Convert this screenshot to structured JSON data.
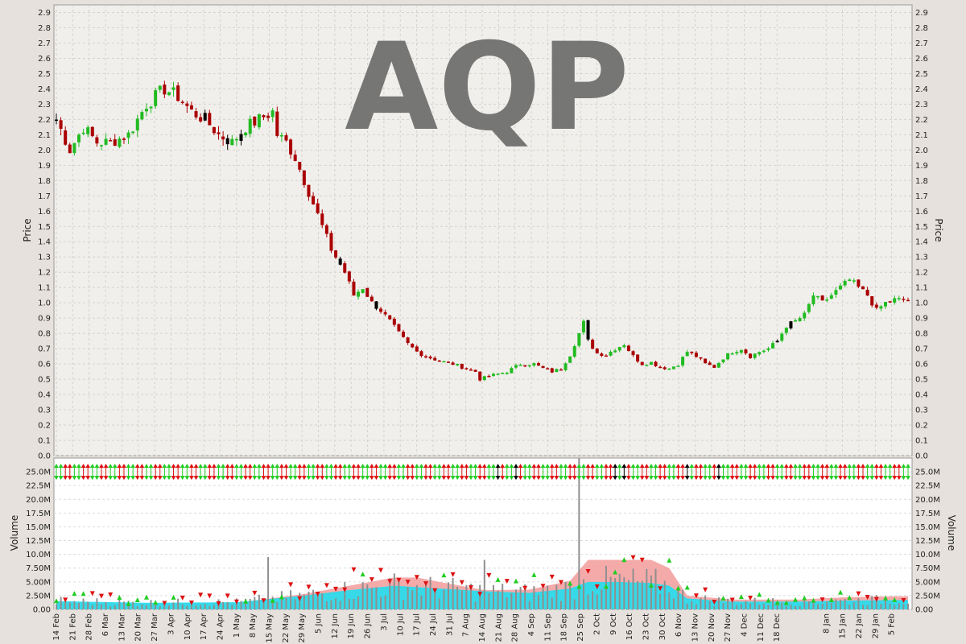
{
  "chart_data": [
    {
      "panel": "price",
      "type": "candlestick",
      "title": "AQP",
      "ylabel": "Price",
      "ylim": [
        0.0,
        2.95
      ],
      "yticks": [
        "0.0",
        "0.1",
        "0.2",
        "0.3",
        "0.4",
        "0.5",
        "0.6",
        "0.7",
        "0.8",
        "0.9",
        "1.0",
        "1.1",
        "1.2",
        "1.3",
        "1.4",
        "1.5",
        "1.6",
        "1.7",
        "1.8",
        "1.9",
        "2.0",
        "2.1",
        "2.2",
        "2.3",
        "2.4",
        "2.5",
        "2.6",
        "2.7",
        "2.8",
        "2.9"
      ],
      "grid": true,
      "colors": {
        "up": "#22bb22",
        "down": "#aa0000",
        "flat": "#000000",
        "background": "#f1efec",
        "grid": "#d5d2cd"
      },
      "close_path": [
        [
          0,
          2.2
        ],
        [
          3,
          2.0
        ],
        [
          6,
          2.15
        ],
        [
          9,
          2.05
        ],
        [
          12,
          2.05
        ],
        [
          16,
          2.1
        ],
        [
          20,
          2.3
        ],
        [
          24,
          2.4
        ],
        [
          27,
          2.35
        ],
        [
          30,
          2.25
        ],
        [
          33,
          2.2
        ],
        [
          36,
          2.1
        ],
        [
          39,
          2.05
        ],
        [
          42,
          2.15
        ],
        [
          45,
          2.2
        ],
        [
          48,
          2.25
        ],
        [
          49,
          2.1
        ],
        [
          51,
          2.05
        ],
        [
          53,
          1.95
        ],
        [
          55,
          1.8
        ],
        [
          57,
          1.65
        ],
        [
          59,
          1.5
        ],
        [
          61,
          1.35
        ],
        [
          64,
          1.2
        ],
        [
          66,
          1.05
        ],
        [
          68,
          1.1
        ],
        [
          70,
          1.0
        ],
        [
          72,
          0.95
        ],
        [
          74,
          0.88
        ],
        [
          76,
          0.8
        ],
        [
          78,
          0.73
        ],
        [
          80,
          0.68
        ],
        [
          82,
          0.65
        ],
        [
          85,
          0.62
        ],
        [
          88,
          0.6
        ],
        [
          91,
          0.57
        ],
        [
          93,
          0.55
        ],
        [
          94,
          0.5
        ],
        [
          96,
          0.52
        ],
        [
          100,
          0.55
        ],
        [
          103,
          0.6
        ],
        [
          106,
          0.6
        ],
        [
          108,
          0.57
        ],
        [
          110,
          0.55
        ],
        [
          112,
          0.57
        ],
        [
          114,
          0.66
        ],
        [
          116,
          0.8
        ],
        [
          117,
          0.87
        ],
        [
          118,
          0.75
        ],
        [
          120,
          0.67
        ],
        [
          122,
          0.66
        ],
        [
          124,
          0.7
        ],
        [
          126,
          0.73
        ],
        [
          128,
          0.65
        ],
        [
          130,
          0.6
        ],
        [
          132,
          0.61
        ],
        [
          134,
          0.58
        ],
        [
          136,
          0.57
        ],
        [
          138,
          0.6
        ],
        [
          140,
          0.68
        ],
        [
          142,
          0.65
        ],
        [
          144,
          0.6
        ],
        [
          146,
          0.58
        ],
        [
          148,
          0.64
        ],
        [
          150,
          0.68
        ],
        [
          152,
          0.7
        ],
        [
          154,
          0.65
        ],
        [
          156,
          0.68
        ],
        [
          158,
          0.7
        ],
        [
          160,
          0.75
        ],
        [
          162,
          0.85
        ],
        [
          164,
          0.88
        ],
        [
          166,
          0.92
        ],
        [
          168,
          1.05
        ],
        [
          170,
          1.0
        ],
        [
          172,
          1.05
        ],
        [
          174,
          1.1
        ],
        [
          176,
          1.15
        ],
        [
          178,
          1.1
        ],
        [
          180,
          1.05
        ],
        [
          182,
          0.95
        ],
        [
          184,
          1.0
        ],
        [
          186,
          1.02
        ]
      ]
    },
    {
      "panel": "volume",
      "type": "bar",
      "ylabel": "Volume",
      "ylim": [
        0,
        27500000
      ],
      "yticks": [
        "0.00",
        "2.50M",
        "5.00M",
        "7.50M",
        "10.0M",
        "12.5M",
        "15.0M",
        "17.5M",
        "20.0M",
        "22.5M",
        "25.0M"
      ],
      "grid": true,
      "colors": {
        "bar": "#8f8f8f",
        "avg_short": "#22ddee",
        "avg_long": "#f5aaaa",
        "signal_up": "#22cc22",
        "signal_down": "#dd1111"
      },
      "spikes": [
        {
          "x": 116,
          "volume": 28000000
        },
        {
          "x": 47,
          "volume": 9500000
        },
        {
          "x": 95,
          "volume": 9000000
        }
      ],
      "avg_short_path": [
        [
          0,
          1.5
        ],
        [
          20,
          1.2
        ],
        [
          40,
          1.3
        ],
        [
          55,
          2.5
        ],
        [
          65,
          3.5
        ],
        [
          75,
          4.3
        ],
        [
          85,
          3.8
        ],
        [
          95,
          3.3
        ],
        [
          105,
          3.0
        ],
        [
          114,
          3.8
        ],
        [
          118,
          5.0
        ],
        [
          124,
          5.0
        ],
        [
          132,
          4.8
        ],
        [
          136,
          4.3
        ],
        [
          140,
          2.0
        ],
        [
          150,
          1.4
        ],
        [
          165,
          1.4
        ],
        [
          175,
          1.6
        ],
        [
          186,
          1.7
        ]
      ],
      "avg_long_path": [
        [
          0,
          1.2
        ],
        [
          20,
          1.1
        ],
        [
          40,
          1.2
        ],
        [
          55,
          2.8
        ],
        [
          65,
          4.3
        ],
        [
          75,
          5.8
        ],
        [
          80,
          5.8
        ],
        [
          85,
          5.0
        ],
        [
          95,
          3.5
        ],
        [
          105,
          3.6
        ],
        [
          114,
          5.2
        ],
        [
          118,
          9.0
        ],
        [
          132,
          9.0
        ],
        [
          136,
          7.5
        ],
        [
          140,
          2.5
        ],
        [
          150,
          1.8
        ],
        [
          165,
          1.8
        ],
        [
          175,
          2.2
        ],
        [
          186,
          2.4
        ]
      ]
    }
  ],
  "x_axis": {
    "labels": [
      "14 Feb",
      "21 Feb",
      "28 Feb",
      "6 Mar",
      "13 Mar",
      "20 Mar",
      "27 Mar",
      "3 Apr",
      "10 Apr",
      "17 Apr",
      "24 Apr",
      "1 May",
      "8 May",
      "15 May",
      "22 May",
      "29 May",
      "5 Jun",
      "12 Jun",
      "19 Jun",
      "26 Jun",
      "3 Jul",
      "10 Jul",
      "17 Jul",
      "24 Jul",
      "31 Jul",
      "7 Aug",
      "14 Aug",
      "21 Aug",
      "28 Aug",
      "4 Sep",
      "11 Sep",
      "18 Sep",
      "25 Sep",
      "2 Oct",
      "9 Oct",
      "16 Oct",
      "23 Oct",
      "30 Oct",
      "6 Nov",
      "13 Nov",
      "20 Nov",
      "27 Nov",
      "4 Dec",
      "11 Dec",
      "18 Dec",
      "8 Jan",
      "15 Jan",
      "22 Jan",
      "29 Jan",
      "5 Feb"
    ],
    "label_index": [
      0,
      5,
      10,
      15,
      20,
      25,
      30,
      35,
      40,
      45,
      50,
      55,
      60,
      65,
      70,
      75,
      80,
      85,
      90,
      95,
      100,
      105,
      110,
      115,
      120,
      125,
      130,
      135,
      140,
      145,
      150,
      155,
      160,
      165,
      170,
      175,
      180,
      185,
      190,
      195,
      200,
      205,
      210,
      215,
      220,
      235,
      240,
      245,
      250,
      255
    ],
    "total_days": 261
  }
}
